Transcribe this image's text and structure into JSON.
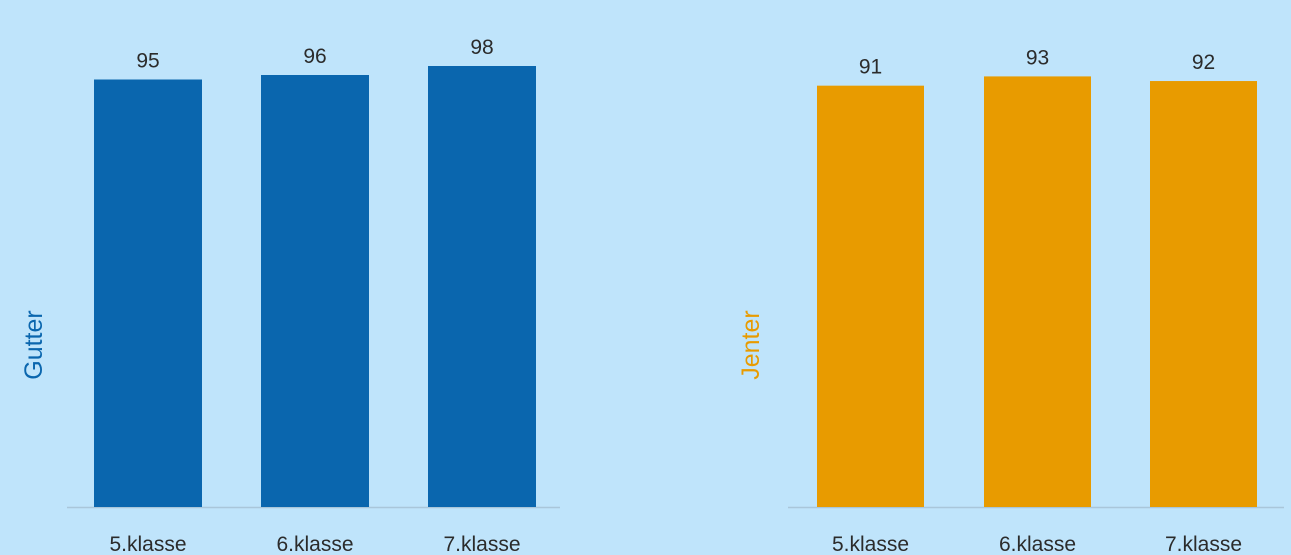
{
  "chart_data": [
    {
      "type": "bar",
      "categories": [
        "5.klasse",
        "6.klasse",
        "7.klasse"
      ],
      "values": [
        95,
        96,
        98
      ],
      "ylabel": "Gutter",
      "ylim": [
        0,
        100
      ],
      "grid": false,
      "color": "#0a66ae"
    },
    {
      "type": "bar",
      "categories": [
        "5.klasse",
        "6.klasse",
        "7.klasse"
      ],
      "values": [
        91,
        93,
        92
      ],
      "ylabel": "Jenter",
      "ylim": [
        0,
        100
      ],
      "grid": false,
      "color": "#e89b00"
    }
  ],
  "colors": {
    "background": "#bfe4fb",
    "baseline": "#a9c6da",
    "text": "#2b2b2b"
  }
}
